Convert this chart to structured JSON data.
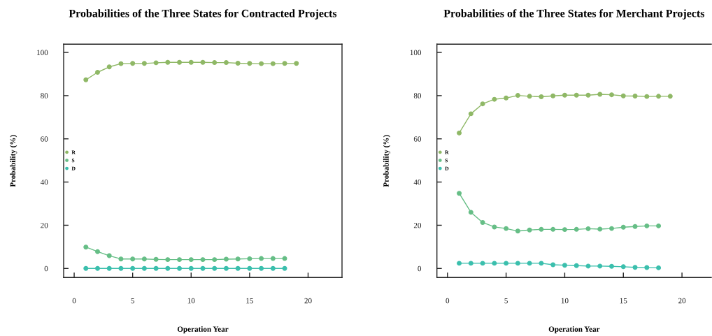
{
  "chart_data": [
    {
      "type": "line",
      "title": "Probabilities of the Three States for Contracted Projects",
      "xlabel": "Operation Year",
      "ylabel": "Probability (%)",
      "xlim": [
        -0.9,
        22.9
      ],
      "ylim": [
        -4.2,
        103.8
      ],
      "xticks": [
        0,
        5,
        10,
        15,
        20
      ],
      "yticks": [
        0,
        20,
        40,
        60,
        80,
        100
      ],
      "grid": false,
      "legend": "left",
      "marker": "circle",
      "line_style": "solid",
      "series": [
        {
          "name": "R",
          "color": "#8fb866",
          "x": [
            1,
            2,
            3,
            4,
            5,
            6,
            7,
            8,
            9,
            10,
            11,
            12,
            13,
            14,
            15,
            16,
            17,
            18,
            19
          ],
          "values": [
            87.3,
            90.8,
            93.3,
            94.8,
            94.9,
            94.9,
            95.2,
            95.4,
            95.4,
            95.4,
            95.4,
            95.3,
            95.3,
            95.0,
            94.9,
            94.8,
            94.8,
            94.9,
            94.9
          ]
        },
        {
          "name": "S",
          "color": "#66be86",
          "x": [
            1,
            2,
            3,
            4,
            5,
            6,
            7,
            8,
            9,
            10,
            11,
            12,
            13,
            14,
            15,
            16,
            17,
            18
          ],
          "values": [
            9.9,
            7.8,
            5.9,
            4.4,
            4.4,
            4.4,
            4.2,
            4.1,
            4.1,
            4.1,
            4.1,
            4.1,
            4.3,
            4.4,
            4.5,
            4.6,
            4.6,
            4.6
          ]
        },
        {
          "name": "D",
          "color": "#3bbfad",
          "x": [
            1,
            2,
            3,
            4,
            5,
            6,
            7,
            8,
            9,
            10,
            11,
            12,
            13,
            14,
            15,
            16,
            17,
            18
          ],
          "values": [
            0,
            0,
            0,
            0,
            0,
            0,
            0,
            0,
            0,
            0,
            0,
            0,
            0,
            0,
            0,
            0,
            0,
            0
          ]
        }
      ]
    },
    {
      "type": "line",
      "title": "Probabilities of the Three States for Merchant Projects",
      "xlabel": "Operation Year",
      "ylabel": "Probability (%)",
      "xlim": [
        -0.9,
        22.5
      ],
      "ylim": [
        -4.2,
        103.8
      ],
      "xticks": [
        0,
        5,
        10,
        15,
        20
      ],
      "yticks": [
        0,
        20,
        40,
        60,
        80,
        100
      ],
      "grid": false,
      "legend": "left",
      "marker": "circle",
      "line_style": "solid",
      "series": [
        {
          "name": "R",
          "color": "#8fb866",
          "x": [
            1,
            2,
            3,
            4,
            5,
            6,
            7,
            8,
            9,
            10,
            11,
            12,
            13,
            14,
            15,
            16,
            17,
            18,
            19
          ],
          "values": [
            62.7,
            71.6,
            76.2,
            78.3,
            78.9,
            80.1,
            79.7,
            79.5,
            79.9,
            80.2,
            80.2,
            80.2,
            80.6,
            80.4,
            79.9,
            79.8,
            79.6,
            79.7,
            79.7
          ]
        },
        {
          "name": "S",
          "color": "#66be86",
          "x": [
            1,
            2,
            3,
            4,
            5,
            6,
            7,
            8,
            9,
            10,
            11,
            12,
            13,
            14,
            15,
            16,
            17,
            18
          ],
          "values": [
            34.8,
            26.0,
            21.3,
            19.2,
            18.5,
            17.3,
            17.8,
            18.1,
            18.1,
            18.0,
            18.1,
            18.4,
            18.2,
            18.5,
            19.1,
            19.4,
            19.7,
            19.7
          ]
        },
        {
          "name": "D",
          "color": "#3bbfad",
          "x": [
            1,
            2,
            3,
            4,
            5,
            6,
            7,
            8,
            9,
            10,
            11,
            12,
            13,
            14,
            15,
            16,
            17,
            18
          ],
          "values": [
            2.4,
            2.4,
            2.4,
            2.4,
            2.4,
            2.4,
            2.4,
            2.4,
            1.7,
            1.5,
            1.3,
            1.1,
            1.1,
            1.0,
            0.8,
            0.5,
            0.4,
            0.3
          ]
        }
      ]
    }
  ]
}
